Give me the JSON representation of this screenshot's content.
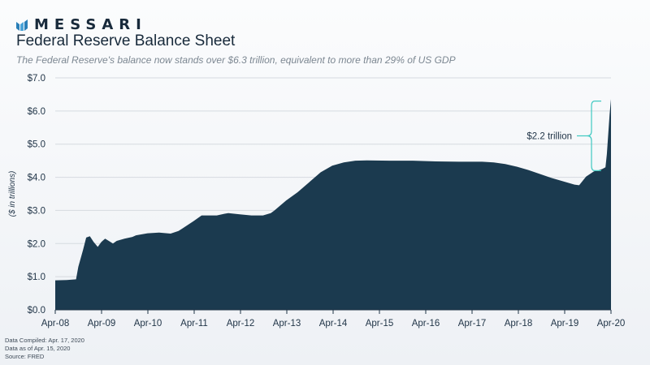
{
  "brand": {
    "name": "MESSARI"
  },
  "title": "Federal Reserve Balance Sheet",
  "subtitle": "The Federal Reserve's balance now stands over $6.3 trillion, equivalent to more than 29% of US GDP",
  "footer": {
    "compiled": "Data Compiled: Apr. 17, 2020",
    "data_as_of": "Data as of Apr. 15, 2020",
    "source": "Source: FRED"
  },
  "colors": {
    "area": "#1b3a4f",
    "accent": "#3fc9c1",
    "grid": "#d6dbe0"
  },
  "chart_data": {
    "type": "area",
    "ylabel": "($ in trillions)",
    "xlabel": "",
    "ylim": [
      0,
      7
    ],
    "ytick_labels": [
      "$0.0",
      "$1.0",
      "$2.0",
      "$3.0",
      "$4.0",
      "$5.0",
      "$6.0",
      "$7.0"
    ],
    "xlim": [
      2008.25,
      2020.29
    ],
    "xtick_labels": [
      "Apr-08",
      "Apr-09",
      "Apr-10",
      "Apr-11",
      "Apr-12",
      "Apr-13",
      "Apr-14",
      "Apr-15",
      "Apr-16",
      "Apr-17",
      "Apr-18",
      "Apr-19",
      "Apr-20"
    ],
    "grid": true,
    "series": [
      {
        "values": [
          [
            2008.25,
            0.89
          ],
          [
            2008.5,
            0.9
          ],
          [
            2008.7,
            0.92
          ],
          [
            2008.75,
            1.3
          ],
          [
            2008.85,
            1.8
          ],
          [
            2008.92,
            2.18
          ],
          [
            2009.0,
            2.22
          ],
          [
            2009.08,
            2.05
          ],
          [
            2009.17,
            1.9
          ],
          [
            2009.25,
            2.05
          ],
          [
            2009.33,
            2.15
          ],
          [
            2009.42,
            2.07
          ],
          [
            2009.5,
            2.0
          ],
          [
            2009.58,
            2.08
          ],
          [
            2009.75,
            2.15
          ],
          [
            2009.92,
            2.2
          ],
          [
            2010.0,
            2.25
          ],
          [
            2010.25,
            2.31
          ],
          [
            2010.5,
            2.33
          ],
          [
            2010.75,
            2.3
          ],
          [
            2010.92,
            2.38
          ],
          [
            2011.0,
            2.45
          ],
          [
            2011.25,
            2.68
          ],
          [
            2011.42,
            2.85
          ],
          [
            2011.75,
            2.85
          ],
          [
            2011.92,
            2.9
          ],
          [
            2012.0,
            2.92
          ],
          [
            2012.25,
            2.88
          ],
          [
            2012.5,
            2.85
          ],
          [
            2012.75,
            2.85
          ],
          [
            2012.92,
            2.92
          ],
          [
            2013.0,
            3.0
          ],
          [
            2013.25,
            3.3
          ],
          [
            2013.5,
            3.55
          ],
          [
            2013.75,
            3.85
          ],
          [
            2014.0,
            4.15
          ],
          [
            2014.25,
            4.35
          ],
          [
            2014.5,
            4.45
          ],
          [
            2014.75,
            4.5
          ],
          [
            2015.0,
            4.51
          ],
          [
            2015.5,
            4.5
          ],
          [
            2016.0,
            4.5
          ],
          [
            2016.5,
            4.48
          ],
          [
            2017.0,
            4.47
          ],
          [
            2017.5,
            4.47
          ],
          [
            2017.75,
            4.45
          ],
          [
            2018.0,
            4.4
          ],
          [
            2018.25,
            4.32
          ],
          [
            2018.5,
            4.22
          ],
          [
            2018.75,
            4.1
          ],
          [
            2019.0,
            3.98
          ],
          [
            2019.25,
            3.88
          ],
          [
            2019.5,
            3.78
          ],
          [
            2019.6,
            3.76
          ],
          [
            2019.75,
            4.02
          ],
          [
            2019.92,
            4.18
          ],
          [
            2020.0,
            4.2
          ],
          [
            2020.1,
            4.25
          ],
          [
            2020.17,
            4.3
          ],
          [
            2020.2,
            4.7
          ],
          [
            2020.23,
            5.3
          ],
          [
            2020.26,
            5.9
          ],
          [
            2020.29,
            6.36
          ]
        ]
      }
    ],
    "annotation": {
      "text": "$2.2 trillion",
      "y_from": 4.2,
      "y_to": 6.3
    }
  }
}
